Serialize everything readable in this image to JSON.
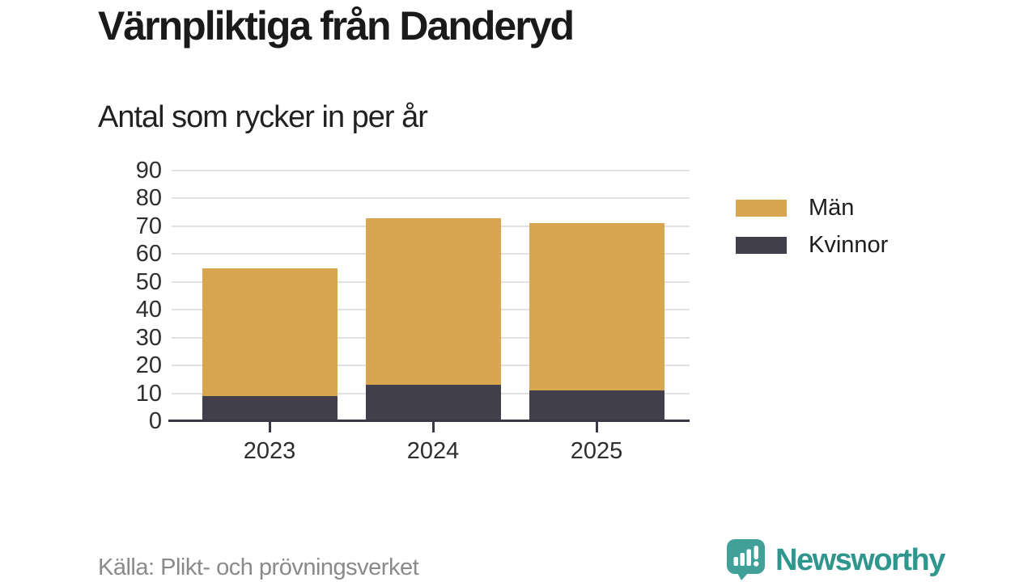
{
  "title": "Värnpliktiga från Danderyd",
  "subtitle": "Antal som rycker in per år",
  "source": "Källa: Plikt- och prövningsverket",
  "brand": {
    "name": "Newsworthy",
    "icon": "bar-chart-speech-bubble-icon",
    "icon_color": "#41a098",
    "text_color": "#2f968d"
  },
  "colors": {
    "men": "#d8a551",
    "women": "#413f4c",
    "gridline": "#e1e1e1",
    "axis": "#3a3844",
    "axis_label": "#2e2e2e",
    "title_text": "#1a1a1a",
    "source_text": "#8a8a8a"
  },
  "legend": [
    {
      "label": "Män",
      "color": "#d8a551"
    },
    {
      "label": "Kvinnor",
      "color": "#413f4c"
    }
  ],
  "chart_data": {
    "type": "bar",
    "stacked": true,
    "title": "Värnpliktiga från Danderyd",
    "subtitle": "Antal som rycker in per år",
    "categories": [
      "2023",
      "2024",
      "2025"
    ],
    "series": [
      {
        "name": "Män",
        "color": "#d8a551",
        "values": [
          46,
          60,
          60
        ]
      },
      {
        "name": "Kvinnor",
        "color": "#413f4c",
        "values": [
          9,
          13,
          11
        ]
      }
    ],
    "stack_totals": [
      55,
      73,
      71
    ],
    "xlabel": "",
    "ylabel": "",
    "ylim": [
      0,
      90
    ],
    "ytick_step": 10,
    "yticks": [
      0,
      10,
      20,
      30,
      40,
      50,
      60,
      70,
      80,
      90
    ],
    "grid": true,
    "legend_position": "right"
  }
}
